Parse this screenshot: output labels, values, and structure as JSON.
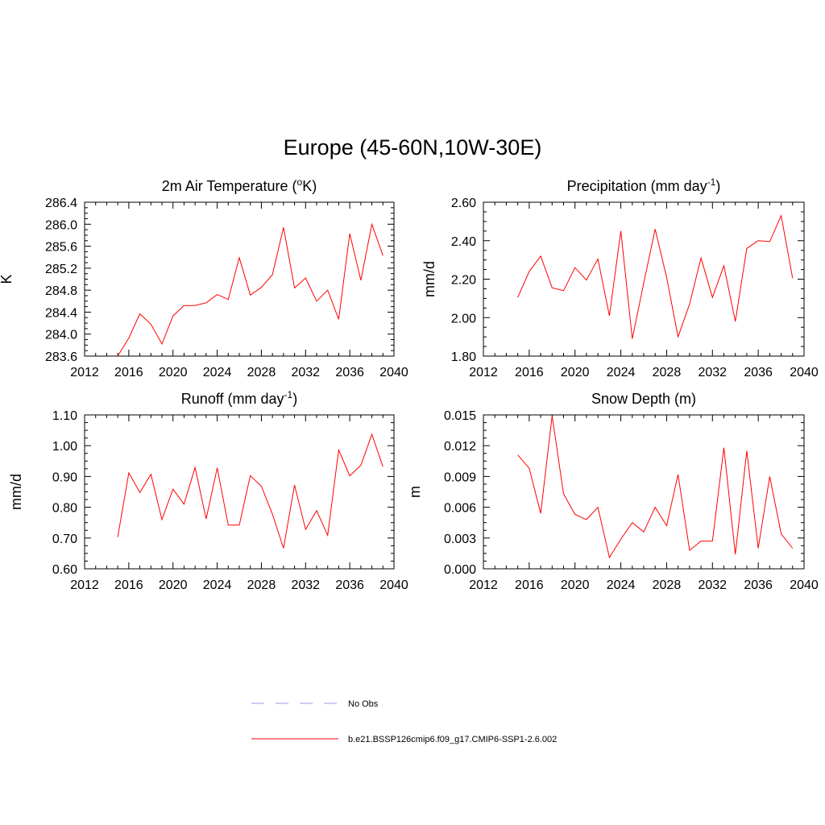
{
  "figure": {
    "title": "Europe (45-60N,10W-30E)"
  },
  "legend": [
    {
      "label": "No Obs",
      "color": "#9999ee",
      "dashed": true
    },
    {
      "label": "b.e21.BSSP126cmip6.f09_g17.CMIP6-SSP1-2.6.002",
      "color": "#ff0000",
      "dashed": false
    }
  ],
  "chart_data": [
    {
      "type": "line",
      "title_main": "2m Air Temperature (",
      "title_sup": "o",
      "title_tail": "K)",
      "ylabel": "K",
      "xlim": [
        2012,
        2040
      ],
      "ylim": [
        283.6,
        286.4
      ],
      "xticks": [
        2012,
        2016,
        2020,
        2024,
        2028,
        2032,
        2036,
        2040
      ],
      "xticks_labels": [
        "2012",
        "2016",
        "2020",
        "2024",
        "2028",
        "2032",
        "2036",
        "2040"
      ],
      "yticks": [
        283.6,
        284.0,
        284.4,
        284.8,
        285.2,
        285.6,
        286.0,
        286.4
      ],
      "yticks_labels": [
        "283.6",
        "284.0",
        "284.4",
        "284.8",
        "285.2",
        "285.6",
        "286.0",
        "286.4"
      ],
      "x": [
        2015,
        2016,
        2017,
        2018,
        2019,
        2020,
        2021,
        2022,
        2023,
        2024,
        2025,
        2026,
        2027,
        2028,
        2029,
        2030,
        2031,
        2032,
        2033,
        2034,
        2035,
        2036,
        2037,
        2038,
        2039
      ],
      "values": [
        283.6,
        283.93,
        284.37,
        284.18,
        283.82,
        284.33,
        284.52,
        284.52,
        284.57,
        284.72,
        284.63,
        285.39,
        284.71,
        284.85,
        285.08,
        285.94,
        284.84,
        285.02,
        284.6,
        284.8,
        284.27,
        285.83,
        284.98,
        286.0,
        285.43
      ]
    },
    {
      "type": "line",
      "title_main": "Precipitation (mm day",
      "title_sup": "-1",
      "title_tail": ")",
      "ylabel": "mm/d",
      "xlim": [
        2012,
        2040
      ],
      "ylim": [
        1.8,
        2.6
      ],
      "xticks": [
        2012,
        2016,
        2020,
        2024,
        2028,
        2032,
        2036,
        2040
      ],
      "xticks_labels": [
        "2012",
        "2016",
        "2020",
        "2024",
        "2028",
        "2032",
        "2036",
        "2040"
      ],
      "yticks": [
        1.8,
        2.0,
        2.2,
        2.4,
        2.6
      ],
      "yticks_labels": [
        "1.80",
        "2.00",
        "2.20",
        "2.40",
        "2.60"
      ],
      "x": [
        2015,
        2016,
        2017,
        2018,
        2019,
        2020,
        2021,
        2022,
        2023,
        2024,
        2025,
        2026,
        2027,
        2028,
        2029,
        2030,
        2031,
        2032,
        2033,
        2034,
        2035,
        2036,
        2037,
        2038,
        2039
      ],
      "values": [
        2.105,
        2.24,
        2.32,
        2.155,
        2.14,
        2.26,
        2.195,
        2.305,
        2.01,
        2.45,
        1.89,
        2.18,
        2.46,
        2.21,
        1.9,
        2.07,
        2.31,
        2.105,
        2.27,
        1.98,
        2.36,
        2.4,
        2.395,
        2.53,
        2.205
      ]
    },
    {
      "type": "line",
      "title_main": "Runoff (mm day",
      "title_sup": "-1",
      "title_tail": ")",
      "ylabel": "mm/d",
      "xlim": [
        2012,
        2040
      ],
      "ylim": [
        0.6,
        1.1
      ],
      "xticks": [
        2012,
        2016,
        2020,
        2024,
        2028,
        2032,
        2036,
        2040
      ],
      "xticks_labels": [
        "2012",
        "2016",
        "2020",
        "2024",
        "2028",
        "2032",
        "2036",
        "2040"
      ],
      "yticks": [
        0.6,
        0.7,
        0.8,
        0.9,
        1.0,
        1.1
      ],
      "yticks_labels": [
        "0.60",
        "0.70",
        "0.80",
        "0.90",
        "1.00",
        "1.10"
      ],
      "x": [
        2015,
        2016,
        2017,
        2018,
        2019,
        2020,
        2021,
        2022,
        2023,
        2024,
        2025,
        2026,
        2027,
        2028,
        2029,
        2030,
        2031,
        2032,
        2033,
        2034,
        2035,
        2036,
        2037,
        2038,
        2039
      ],
      "values": [
        0.703,
        0.912,
        0.848,
        0.907,
        0.76,
        0.859,
        0.81,
        0.929,
        0.762,
        0.928,
        0.742,
        0.742,
        0.903,
        0.868,
        0.778,
        0.667,
        0.872,
        0.728,
        0.789,
        0.709,
        0.986,
        0.902,
        0.936,
        1.037,
        0.932
      ]
    },
    {
      "type": "line",
      "title_main": "Snow Depth (m)",
      "title_sup": "",
      "title_tail": "",
      "ylabel": "m",
      "xlim": [
        2012,
        2040
      ],
      "ylim": [
        0.0,
        0.015
      ],
      "xticks": [
        2012,
        2016,
        2020,
        2024,
        2028,
        2032,
        2036,
        2040
      ],
      "xticks_labels": [
        "2012",
        "2016",
        "2020",
        "2024",
        "2028",
        "2032",
        "2036",
        "2040"
      ],
      "yticks": [
        0.0,
        0.003,
        0.006,
        0.009,
        0.012,
        0.015
      ],
      "yticks_labels": [
        "0.000",
        "0.003",
        "0.006",
        "0.009",
        "0.012",
        "0.015"
      ],
      "x": [
        2015,
        2016,
        2017,
        2018,
        2019,
        2020,
        2021,
        2022,
        2023,
        2024,
        2025,
        2026,
        2027,
        2028,
        2029,
        2030,
        2031,
        2032,
        2033,
        2034,
        2035,
        2036,
        2037,
        2038,
        2039
      ],
      "values": [
        0.0111,
        0.0098,
        0.0054,
        0.0149,
        0.0073,
        0.0053,
        0.0048,
        0.006,
        0.0011,
        0.0029,
        0.0045,
        0.0036,
        0.006,
        0.0042,
        0.0092,
        0.0018,
        0.0027,
        0.0027,
        0.0118,
        0.0014,
        0.0115,
        0.002,
        0.009,
        0.0034,
        0.002
      ]
    }
  ]
}
